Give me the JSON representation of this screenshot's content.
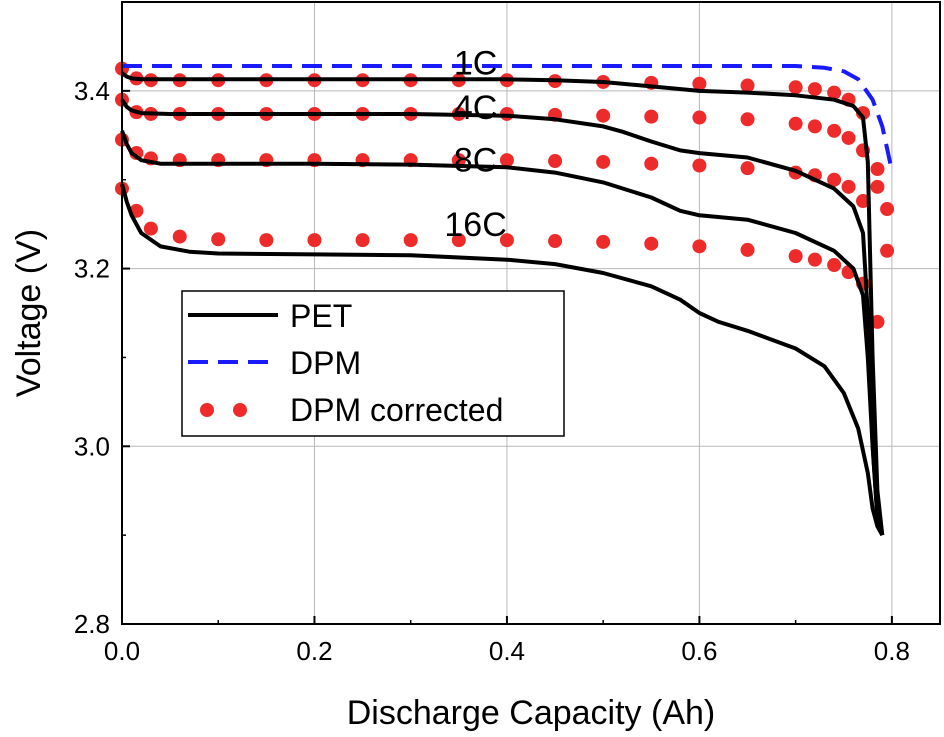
{
  "chart_data": {
    "type": "line",
    "title": "",
    "xlabel": "Discharge Capacity (Ah)",
    "ylabel": "Voltage (V)",
    "xlim": [
      0.0,
      0.85
    ],
    "ylim": [
      2.8,
      3.5
    ],
    "xticks": [
      0.0,
      0.2,
      0.4,
      0.6,
      0.8
    ],
    "xtick_labels": [
      "0.0",
      "0.2",
      "0.4",
      "0.6",
      "0.8"
    ],
    "yticks": [
      2.8,
      3.0,
      3.2,
      3.4
    ],
    "ytick_labels": [
      "2.8",
      "3.0",
      "3.2",
      "3.4"
    ],
    "grid": true,
    "legend_position": "center-left",
    "legend": [
      "PET",
      "DPM",
      "DPM corrected"
    ],
    "colors": {
      "pet": "#000000",
      "dpm": "#1a1aff",
      "dpm_corrected": "#ee2b2b"
    },
    "rate_labels": [
      {
        "text": "1C",
        "x": 0.33,
        "y": 3.432
      },
      {
        "text": "4C",
        "x": 0.33,
        "y": 3.382
      },
      {
        "text": "8C",
        "x": 0.33,
        "y": 3.323
      },
      {
        "text": "16C",
        "x": 0.33,
        "y": 3.25
      }
    ],
    "series": [
      {
        "name": "PET",
        "rate": "1C",
        "style": "solid",
        "x": [
          0,
          0.005,
          0.01,
          0.02,
          0.05,
          0.1,
          0.2,
          0.3,
          0.4,
          0.45,
          0.5,
          0.55,
          0.6,
          0.65,
          0.7,
          0.74,
          0.76,
          0.77,
          0.775,
          0.78,
          0.785,
          0.79
        ],
        "y": [
          3.42,
          3.416,
          3.414,
          3.413,
          3.413,
          3.413,
          3.413,
          3.413,
          3.413,
          3.412,
          3.41,
          3.405,
          3.4,
          3.398,
          3.395,
          3.39,
          3.383,
          3.37,
          3.32,
          3.1,
          2.95,
          2.9
        ]
      },
      {
        "name": "PET",
        "rate": "4C",
        "style": "solid",
        "x": [
          0,
          0.005,
          0.01,
          0.02,
          0.05,
          0.1,
          0.2,
          0.3,
          0.4,
          0.45,
          0.5,
          0.52,
          0.55,
          0.58,
          0.6,
          0.65,
          0.7,
          0.74,
          0.76,
          0.77,
          0.775,
          0.78,
          0.785,
          0.79
        ],
        "y": [
          3.39,
          3.382,
          3.378,
          3.375,
          3.374,
          3.374,
          3.374,
          3.374,
          3.372,
          3.368,
          3.36,
          3.354,
          3.343,
          3.333,
          3.33,
          3.325,
          3.31,
          3.29,
          3.27,
          3.24,
          3.15,
          3.0,
          2.92,
          2.9
        ]
      },
      {
        "name": "PET",
        "rate": "8C",
        "style": "solid",
        "x": [
          0,
          0.005,
          0.01,
          0.02,
          0.04,
          0.1,
          0.2,
          0.3,
          0.4,
          0.45,
          0.5,
          0.55,
          0.58,
          0.6,
          0.65,
          0.7,
          0.74,
          0.76,
          0.77,
          0.775,
          0.78,
          0.785,
          0.79
        ],
        "y": [
          3.355,
          3.34,
          3.33,
          3.322,
          3.318,
          3.318,
          3.318,
          3.317,
          3.314,
          3.308,
          3.297,
          3.28,
          3.265,
          3.26,
          3.255,
          3.24,
          3.22,
          3.2,
          3.17,
          3.1,
          3.0,
          2.92,
          2.9
        ]
      },
      {
        "name": "PET",
        "rate": "16C",
        "style": "solid",
        "x": [
          0,
          0.005,
          0.01,
          0.02,
          0.04,
          0.07,
          0.1,
          0.2,
          0.3,
          0.4,
          0.45,
          0.5,
          0.55,
          0.58,
          0.6,
          0.62,
          0.65,
          0.7,
          0.73,
          0.75,
          0.765,
          0.775,
          0.78,
          0.785,
          0.79
        ],
        "y": [
          3.295,
          3.275,
          3.26,
          3.24,
          3.225,
          3.219,
          3.217,
          3.216,
          3.215,
          3.21,
          3.205,
          3.195,
          3.18,
          3.165,
          3.15,
          3.14,
          3.13,
          3.11,
          3.09,
          3.06,
          3.02,
          2.97,
          2.93,
          2.91,
          2.9
        ]
      },
      {
        "name": "DPM",
        "rate": "1C",
        "style": "dashed",
        "x": [
          0,
          0.1,
          0.2,
          0.3,
          0.4,
          0.5,
          0.6,
          0.7,
          0.73,
          0.75,
          0.765,
          0.78,
          0.79,
          0.8
        ],
        "y": [
          3.428,
          3.428,
          3.428,
          3.428,
          3.428,
          3.428,
          3.428,
          3.428,
          3.426,
          3.422,
          3.413,
          3.39,
          3.36,
          3.31
        ]
      },
      {
        "name": "DPM corrected",
        "rate": "1C",
        "style": "dots",
        "x": [
          0,
          0.015,
          0.03,
          0.06,
          0.1,
          0.15,
          0.2,
          0.25,
          0.3,
          0.35,
          0.4,
          0.45,
          0.5,
          0.55,
          0.6,
          0.65,
          0.7,
          0.72,
          0.74,
          0.755,
          0.77
        ],
        "y": [
          3.425,
          3.414,
          3.412,
          3.412,
          3.412,
          3.412,
          3.412,
          3.412,
          3.412,
          3.412,
          3.412,
          3.411,
          3.41,
          3.409,
          3.408,
          3.406,
          3.404,
          3.402,
          3.398,
          3.39,
          3.375
        ]
      },
      {
        "name": "DPM corrected",
        "rate": "4C",
        "style": "dots",
        "x": [
          0,
          0.015,
          0.03,
          0.06,
          0.1,
          0.15,
          0.2,
          0.25,
          0.3,
          0.35,
          0.4,
          0.45,
          0.5,
          0.55,
          0.6,
          0.65,
          0.7,
          0.72,
          0.74,
          0.755,
          0.77,
          0.785
        ],
        "y": [
          3.39,
          3.376,
          3.374,
          3.374,
          3.374,
          3.374,
          3.374,
          3.374,
          3.374,
          3.374,
          3.374,
          3.373,
          3.372,
          3.371,
          3.37,
          3.368,
          3.363,
          3.36,
          3.355,
          3.347,
          3.333,
          3.312
        ]
      },
      {
        "name": "DPM corrected",
        "rate": "8C",
        "style": "dots",
        "x": [
          0,
          0.015,
          0.03,
          0.06,
          0.1,
          0.15,
          0.2,
          0.25,
          0.3,
          0.35,
          0.4,
          0.45,
          0.5,
          0.55,
          0.6,
          0.65,
          0.7,
          0.72,
          0.74,
          0.755,
          0.77,
          0.785,
          0.795
        ],
        "y": [
          3.345,
          3.33,
          3.324,
          3.322,
          3.322,
          3.322,
          3.322,
          3.322,
          3.322,
          3.322,
          3.322,
          3.321,
          3.32,
          3.318,
          3.316,
          3.313,
          3.308,
          3.305,
          3.3,
          3.292,
          3.276,
          3.292,
          3.267
        ]
      },
      {
        "name": "DPM corrected",
        "rate": "16C",
        "style": "dots",
        "x": [
          0,
          0.015,
          0.03,
          0.06,
          0.1,
          0.15,
          0.2,
          0.25,
          0.3,
          0.35,
          0.4,
          0.45,
          0.5,
          0.55,
          0.6,
          0.65,
          0.7,
          0.72,
          0.74,
          0.755,
          0.77,
          0.785,
          0.795
        ],
        "y": [
          3.29,
          3.265,
          3.245,
          3.236,
          3.233,
          3.232,
          3.232,
          3.232,
          3.232,
          3.232,
          3.232,
          3.231,
          3.23,
          3.228,
          3.225,
          3.221,
          3.214,
          3.21,
          3.204,
          3.196,
          3.183,
          3.14,
          3.22
        ]
      }
    ]
  }
}
